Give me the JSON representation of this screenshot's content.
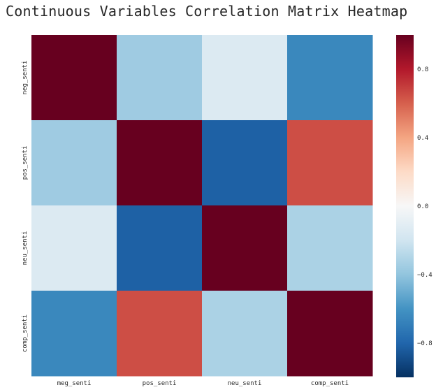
{
  "chart_data": {
    "type": "heatmap",
    "title": "Continuous Variables Correlation Matrix Heatmap",
    "xlabel": "",
    "ylabel": "",
    "x_categories": [
      "meg_senti",
      "pos_senti",
      "neu_senti",
      "comp_senti"
    ],
    "y_categories": [
      "neg_senti",
      "pos_senti",
      "neu_senti",
      "comp_senti"
    ],
    "values": [
      [
        1.0,
        -0.36,
        -0.14,
        -0.65
      ],
      [
        -0.36,
        1.0,
        -0.82,
        0.65
      ],
      [
        -0.14,
        -0.82,
        1.0,
        -0.32
      ],
      [
        -0.65,
        0.65,
        -0.32,
        1.0
      ]
    ],
    "vmin": -1.0,
    "vmax": 1.0,
    "colormap": "RdBu_r",
    "colorbar_ticks": [
      "0.8",
      "0.4",
      "0.0",
      "−0.4",
      "−0.8"
    ],
    "colorbar_tick_values": [
      0.8,
      0.4,
      0.0,
      -0.4,
      -0.8
    ],
    "grid": false,
    "colorbar_position": "right"
  }
}
